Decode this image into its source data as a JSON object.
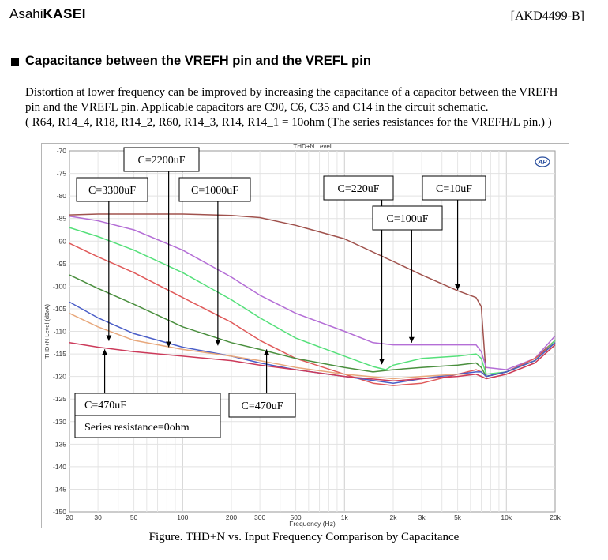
{
  "header": {
    "logo_prefix": "Asahi",
    "logo_main": "KASEI",
    "doc_id": "[AKD4499-B]"
  },
  "section": {
    "title": "Capacitance between the VREFH pin and the VREFL pin"
  },
  "paragraph": {
    "line1": "Distortion at lower frequency can be improved by increasing the capacitance of a capacitor between the VREFH",
    "line2": "pin and the VREFL pin.  Applicable capacitors are C90, C6, C35 and C14 in the circuit schematic.",
    "line3": "( R64, R14_4, R18, R14_2, R60, R14_3, R14, R14_1 = 10ohm (The series resistances for the VREFH/L pin.) )"
  },
  "figure": {
    "caption": "Figure. THD+N vs. Input Frequency Comparison by Capacitance"
  },
  "chart_data": {
    "type": "line",
    "title": "THD+N Level",
    "xlabel": "Frequency (Hz)",
    "ylabel": "THD+N Level (dBrA)",
    "xscale": "log",
    "xlim": [
      20,
      20000
    ],
    "ylim": [
      -150,
      -70
    ],
    "grid": true,
    "logo_text": "AP",
    "x_ticks": [
      20,
      30,
      50,
      100,
      200,
      300,
      500,
      1000,
      2000,
      3000,
      5000,
      10000,
      20000
    ],
    "x_tick_labels": [
      "20",
      "30",
      "50",
      "100",
      "200",
      "300",
      "500",
      "1k",
      "2k",
      "3k",
      "5k",
      "10k",
      "20k"
    ],
    "y_ticks": [
      -70,
      -75,
      -80,
      -85,
      -90,
      -95,
      -100,
      -105,
      -110,
      -115,
      -120,
      -125,
      -130,
      -135,
      -140,
      -145,
      -150
    ],
    "y_tick_labels": [
      "-70",
      "-75",
      "-80",
      "-85",
      "-90",
      "-95",
      "-100",
      "-105",
      "-110",
      "-115",
      "-120",
      "-125",
      "-130",
      "-135",
      "-140",
      "-145",
      "-150"
    ],
    "series": [
      {
        "color": "#a0524d",
        "points": [
          [
            20,
            -84.2
          ],
          [
            30,
            -84.0
          ],
          [
            50,
            -84.0
          ],
          [
            100,
            -84.0
          ],
          [
            200,
            -84.3
          ],
          [
            300,
            -84.8
          ],
          [
            500,
            -86.5
          ],
          [
            1000,
            -89.5
          ],
          [
            2000,
            -94.5
          ],
          [
            3000,
            -97.5
          ],
          [
            5000,
            -101.0
          ],
          [
            6500,
            -102.5
          ],
          [
            7000,
            -104.5
          ],
          [
            7500,
            -120.0
          ],
          [
            10000,
            -119.0
          ],
          [
            15000,
            -116.0
          ],
          [
            20000,
            -112.0
          ]
        ]
      },
      {
        "color": "#b46ed6",
        "points": [
          [
            20,
            -84.5
          ],
          [
            30,
            -85.5
          ],
          [
            50,
            -87.5
          ],
          [
            100,
            -92.0
          ],
          [
            200,
            -98.0
          ],
          [
            300,
            -102.0
          ],
          [
            500,
            -106.0
          ],
          [
            1000,
            -110.0
          ],
          [
            1500,
            -112.5
          ],
          [
            2000,
            -113.0
          ],
          [
            3000,
            -113.0
          ],
          [
            5000,
            -113.0
          ],
          [
            6500,
            -113.0
          ],
          [
            7000,
            -114.5
          ],
          [
            7500,
            -118.0
          ],
          [
            10000,
            -118.5
          ],
          [
            15000,
            -116.0
          ],
          [
            20000,
            -111.0
          ]
        ]
      },
      {
        "color": "#55e07a",
        "points": [
          [
            20,
            -87.0
          ],
          [
            30,
            -89.0
          ],
          [
            50,
            -92.0
          ],
          [
            100,
            -97.0
          ],
          [
            200,
            -103.0
          ],
          [
            300,
            -107.0
          ],
          [
            500,
            -111.5
          ],
          [
            1000,
            -115.5
          ],
          [
            1500,
            -117.8
          ],
          [
            1800,
            -118.5
          ],
          [
            2000,
            -117.5
          ],
          [
            3000,
            -116.0
          ],
          [
            5000,
            -115.5
          ],
          [
            6500,
            -115.0
          ],
          [
            7000,
            -116.0
          ],
          [
            7500,
            -119.5
          ],
          [
            10000,
            -119.0
          ],
          [
            15000,
            -116.5
          ],
          [
            20000,
            -112.0
          ]
        ]
      },
      {
        "color": "#e05a5a",
        "points": [
          [
            20,
            -90.5
          ],
          [
            30,
            -93.5
          ],
          [
            50,
            -97.0
          ],
          [
            100,
            -102.5
          ],
          [
            200,
            -108.0
          ],
          [
            300,
            -112.0
          ],
          [
            500,
            -116.0
          ],
          [
            1000,
            -119.5
          ],
          [
            1500,
            -121.5
          ],
          [
            2000,
            -122.0
          ],
          [
            3000,
            -121.5
          ],
          [
            5000,
            -119.5
          ],
          [
            6500,
            -118.5
          ],
          [
            7000,
            -119.0
          ],
          [
            7500,
            -120.0
          ],
          [
            10000,
            -119.0
          ],
          [
            15000,
            -116.0
          ],
          [
            20000,
            -112.5
          ]
        ]
      },
      {
        "color": "#4a8f3e",
        "points": [
          [
            20,
            -97.5
          ],
          [
            30,
            -100.5
          ],
          [
            50,
            -104.0
          ],
          [
            100,
            -109.0
          ],
          [
            200,
            -112.5
          ],
          [
            300,
            -114.0
          ],
          [
            500,
            -116.0
          ],
          [
            1000,
            -118.0
          ],
          [
            1500,
            -119.0
          ],
          [
            2000,
            -118.5
          ],
          [
            3000,
            -118.0
          ],
          [
            5000,
            -117.5
          ],
          [
            6500,
            -117.0
          ],
          [
            7000,
            -118.0
          ],
          [
            7500,
            -120.0
          ],
          [
            10000,
            -119.0
          ],
          [
            15000,
            -116.5
          ],
          [
            20000,
            -112.5
          ]
        ]
      },
      {
        "color": "#4a5ec8",
        "points": [
          [
            20,
            -103.5
          ],
          [
            30,
            -107.0
          ],
          [
            50,
            -110.5
          ],
          [
            100,
            -113.5
          ],
          [
            200,
            -115.5
          ],
          [
            300,
            -117.0
          ],
          [
            500,
            -118.5
          ],
          [
            1000,
            -120.0
          ],
          [
            2000,
            -121.5
          ],
          [
            3000,
            -120.5
          ],
          [
            5000,
            -119.5
          ],
          [
            6500,
            -119.0
          ],
          [
            7000,
            -119.0
          ],
          [
            7500,
            -120.0
          ],
          [
            10000,
            -119.0
          ],
          [
            15000,
            -116.5
          ],
          [
            20000,
            -112.5
          ]
        ]
      },
      {
        "color": "#e8a87c",
        "points": [
          [
            20,
            -106.0
          ],
          [
            30,
            -109.0
          ],
          [
            50,
            -112.0
          ],
          [
            100,
            -114.0
          ],
          [
            200,
            -115.5
          ],
          [
            300,
            -116.5
          ],
          [
            500,
            -118.0
          ],
          [
            1000,
            -119.5
          ],
          [
            2000,
            -120.5
          ],
          [
            3000,
            -120.0
          ],
          [
            5000,
            -119.5
          ],
          [
            6500,
            -119.5
          ],
          [
            7000,
            -120.0
          ],
          [
            7500,
            -120.5
          ],
          [
            10000,
            -119.5
          ],
          [
            15000,
            -117.0
          ],
          [
            20000,
            -113.0
          ]
        ]
      },
      {
        "color": "#cc3a5a",
        "points": [
          [
            20,
            -112.5
          ],
          [
            30,
            -113.5
          ],
          [
            50,
            -114.5
          ],
          [
            100,
            -115.5
          ],
          [
            200,
            -116.5
          ],
          [
            300,
            -117.5
          ],
          [
            500,
            -118.5
          ],
          [
            1000,
            -120.0
          ],
          [
            2000,
            -121.0
          ],
          [
            3000,
            -120.5
          ],
          [
            5000,
            -120.0
          ],
          [
            6500,
            -119.5
          ],
          [
            7000,
            -120.0
          ],
          [
            7500,
            -120.5
          ],
          [
            10000,
            -119.5
          ],
          [
            15000,
            -117.0
          ],
          [
            20000,
            -113.0
          ]
        ]
      }
    ],
    "annotations": [
      {
        "id": "c2200",
        "text": "C=2200uF",
        "target": [
          82,
          -114.2
        ]
      },
      {
        "id": "c3300",
        "text": "C=3300uF",
        "target": [
          35,
          -112.8
        ]
      },
      {
        "id": "c1000",
        "text": "C=1000uF",
        "target": [
          165,
          -113.8
        ]
      },
      {
        "id": "c220",
        "text": "C=220uF",
        "target": [
          1700,
          -118.0
        ]
      },
      {
        "id": "c10",
        "text": "C=10uF",
        "target": [
          5000,
          -101.5
        ]
      },
      {
        "id": "c100",
        "text": "C=100uF",
        "target": [
          2600,
          -113.2
        ]
      },
      {
        "id": "c470a",
        "text": "C=470uF",
        "target": [
          33,
          -113.3
        ],
        "sublabel": "Series resistance=0ohm"
      },
      {
        "id": "c470b",
        "text": "C=470uF",
        "target": [
          330,
          -113.3
        ]
      }
    ]
  }
}
